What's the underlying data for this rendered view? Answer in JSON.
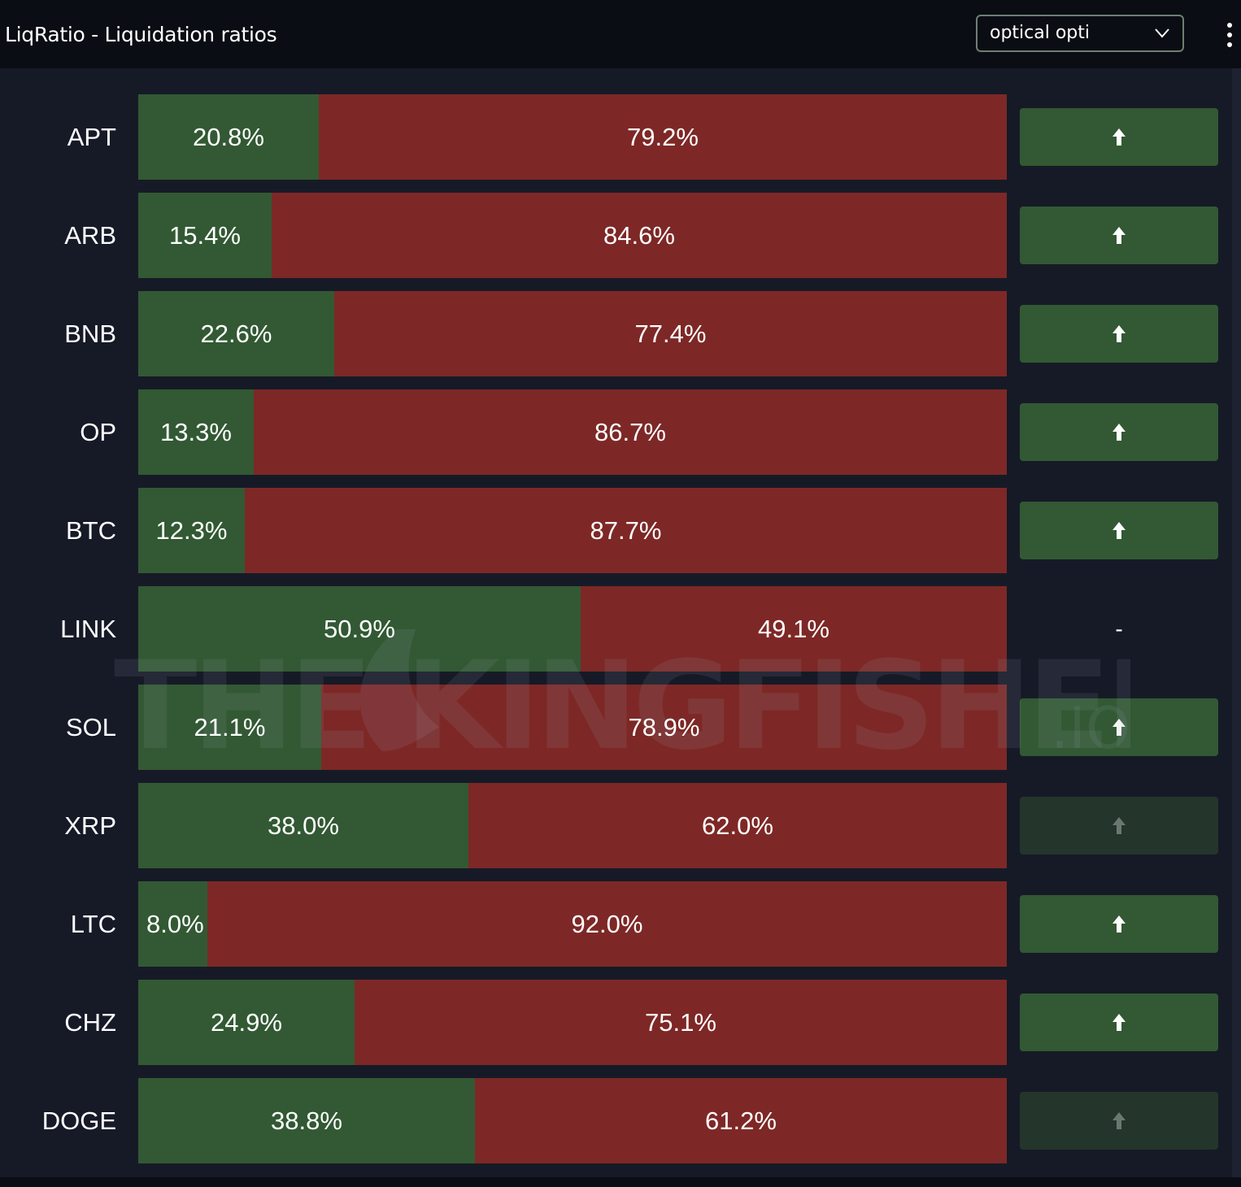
{
  "header": {
    "title": "LiqRatio - Liquidation ratios",
    "dropdown_value": "optical opti"
  },
  "watermark": {
    "brand": "THE KINGFISHER",
    "suffix": ".IO"
  },
  "colors": {
    "long": "#325933",
    "short": "#7d2826",
    "signal_active": "#325933",
    "signal_dim": "#24352b",
    "panel": "#161a27"
  },
  "chart_data": {
    "type": "bar",
    "stacked": true,
    "orientation": "horizontal",
    "categories": [
      "APT",
      "ARB",
      "BNB",
      "OP",
      "BTC",
      "LINK",
      "SOL",
      "XRP",
      "LTC",
      "CHZ",
      "DOGE"
    ],
    "series": [
      {
        "values": [
          20.8,
          15.4,
          22.6,
          13.3,
          12.3,
          50.9,
          21.1,
          38.0,
          8.0,
          24.9,
          38.8
        ]
      },
      {
        "values": [
          79.2,
          84.6,
          77.4,
          86.7,
          87.7,
          49.1,
          78.9,
          62.0,
          92.0,
          75.1,
          61.2
        ]
      }
    ],
    "value_labels_long": [
      "20.8%",
      "15.4%",
      "22.6%",
      "13.3%",
      "12.3%",
      "50.9%",
      "21.1%",
      "38.0%",
      "8.0%",
      "24.9%",
      "38.8%"
    ],
    "value_labels_short": [
      "79.2%",
      "84.6%",
      "77.4%",
      "86.7%",
      "87.7%",
      "49.1%",
      "78.9%",
      "62.0%",
      "92.0%",
      "75.1%",
      "61.2%"
    ],
    "signals": [
      "up",
      "up",
      "up",
      "up",
      "up",
      "-",
      "up",
      "up-dim",
      "up",
      "up",
      "up-dim"
    ],
    "xlim": [
      0,
      100
    ]
  }
}
